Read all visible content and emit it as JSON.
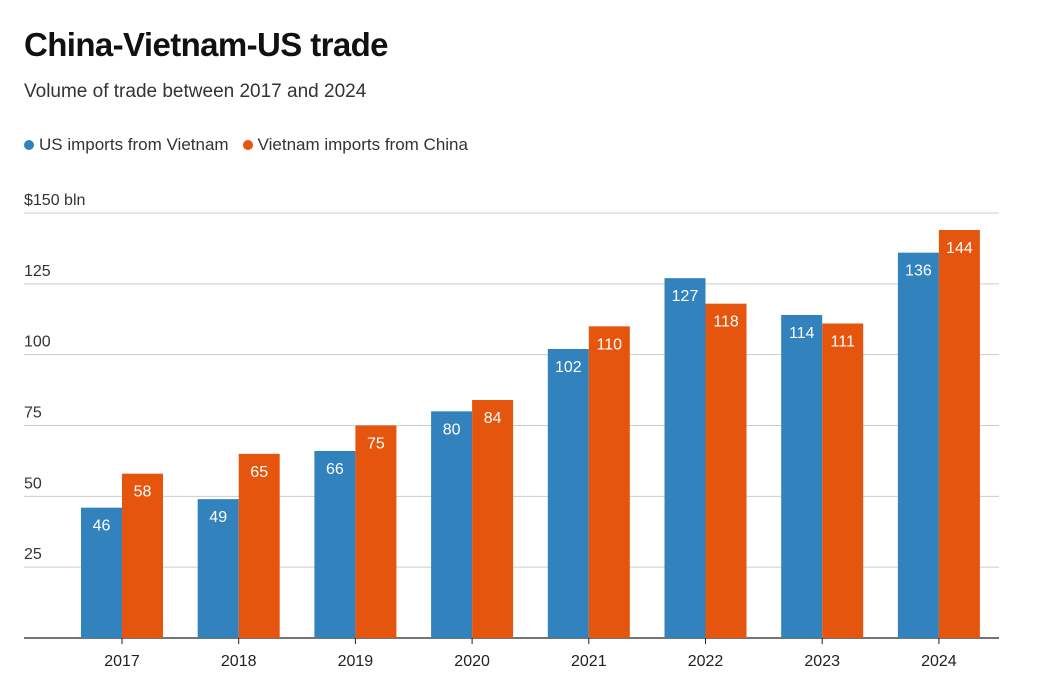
{
  "chart_data": {
    "type": "bar",
    "title": "China-Vietnam-US trade",
    "subtitle": "Volume of trade between 2017 and 2024",
    "categories": [
      "2017",
      "2018",
      "2019",
      "2020",
      "2021",
      "2022",
      "2023",
      "2024"
    ],
    "series": [
      {
        "name": "US imports from Vietnam",
        "color": "#3182bd",
        "values": [
          46,
          49,
          66,
          80,
          102,
          127,
          114,
          136
        ]
      },
      {
        "name": "Vietnam imports from China",
        "color": "#e6550d",
        "values": [
          58,
          65,
          75,
          84,
          110,
          118,
          111,
          144
        ]
      }
    ],
    "yticks": [
      25,
      50,
      75,
      100,
      125,
      150
    ],
    "ytick_labels": [
      "25",
      "50",
      "75",
      "100",
      "125",
      "$150 bln"
    ],
    "ylim": [
      0,
      150
    ],
    "grid": true,
    "legend_position": "top-left"
  }
}
